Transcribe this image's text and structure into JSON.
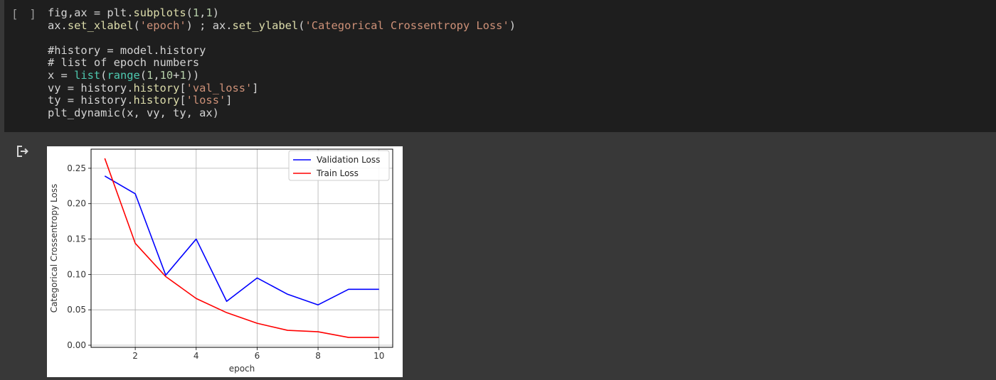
{
  "cell": {
    "run_indicator": "[ ]",
    "code_lines": [
      [
        {
          "t": "fig,ax = plt.",
          "c": ""
        },
        {
          "t": "subplots",
          "c": "fn"
        },
        {
          "t": "(",
          "c": ""
        },
        {
          "t": "1",
          "c": "num"
        },
        {
          "t": ",",
          "c": ""
        },
        {
          "t": "1",
          "c": "num"
        },
        {
          "t": ")",
          "c": ""
        }
      ],
      [
        {
          "t": "ax.",
          "c": ""
        },
        {
          "t": "set_xlabel",
          "c": "fn"
        },
        {
          "t": "(",
          "c": ""
        },
        {
          "t": "'epoch'",
          "c": "str"
        },
        {
          "t": ") ; ax.",
          "c": ""
        },
        {
          "t": "set_ylabel",
          "c": "fn"
        },
        {
          "t": "(",
          "c": ""
        },
        {
          "t": "'Categorical Crossentropy Loss'",
          "c": "str"
        },
        {
          "t": ")",
          "c": ""
        }
      ],
      [],
      [
        {
          "t": "#history = model.history",
          "c": "cm"
        }
      ],
      [
        {
          "t": "# list of epoch numbers",
          "c": "cm"
        }
      ],
      [
        {
          "t": "x = ",
          "c": ""
        },
        {
          "t": "list",
          "c": "builtin"
        },
        {
          "t": "(",
          "c": ""
        },
        {
          "t": "range",
          "c": "builtin"
        },
        {
          "t": "(",
          "c": ""
        },
        {
          "t": "1",
          "c": "num"
        },
        {
          "t": ",",
          "c": ""
        },
        {
          "t": "10",
          "c": "num"
        },
        {
          "t": "+",
          "c": ""
        },
        {
          "t": "1",
          "c": "num"
        },
        {
          "t": "))",
          "c": ""
        }
      ],
      [
        {
          "t": "vy = history.",
          "c": ""
        },
        {
          "t": "history",
          "c": "fn"
        },
        {
          "t": "[",
          "c": ""
        },
        {
          "t": "'val_loss'",
          "c": "str"
        },
        {
          "t": "]",
          "c": ""
        }
      ],
      [
        {
          "t": "ty = history.",
          "c": ""
        },
        {
          "t": "history",
          "c": "fn"
        },
        {
          "t": "[",
          "c": ""
        },
        {
          "t": "'loss'",
          "c": "str"
        },
        {
          "t": "]",
          "c": ""
        }
      ],
      [
        {
          "t": "plt_dynamic(x, vy, ty, ax)",
          "c": ""
        }
      ]
    ]
  },
  "output": {
    "icon": "output-redirect-icon"
  },
  "chart_data": {
    "type": "line",
    "x": [
      1,
      2,
      3,
      4,
      5,
      6,
      7,
      8,
      9,
      10
    ],
    "series": [
      {
        "name": "Validation Loss",
        "color": "#0000ff",
        "values": [
          0.239,
          0.214,
          0.099,
          0.15,
          0.062,
          0.095,
          0.072,
          0.057,
          0.079,
          0.079
        ]
      },
      {
        "name": "Train Loss",
        "color": "#ff0000",
        "values": [
          0.264,
          0.144,
          0.097,
          0.066,
          0.046,
          0.031,
          0.021,
          0.019,
          0.011,
          0.011
        ]
      }
    ],
    "xlabel": "epoch",
    "ylabel": "Categorical Crossentropy Loss",
    "xlim": [
      0.55,
      10.45
    ],
    "ylim": [
      -0.003,
      0.277
    ],
    "xticks": [
      2,
      4,
      6,
      8,
      10
    ],
    "yticks": [
      0.0,
      0.05,
      0.1,
      0.15,
      0.2,
      0.25
    ],
    "xtick_labels": [
      "2",
      "4",
      "6",
      "8",
      "10"
    ],
    "ytick_labels": [
      "0.00",
      "0.05",
      "0.10",
      "0.15",
      "0.20",
      "0.25"
    ],
    "grid": true,
    "legend_position": "top-right"
  }
}
